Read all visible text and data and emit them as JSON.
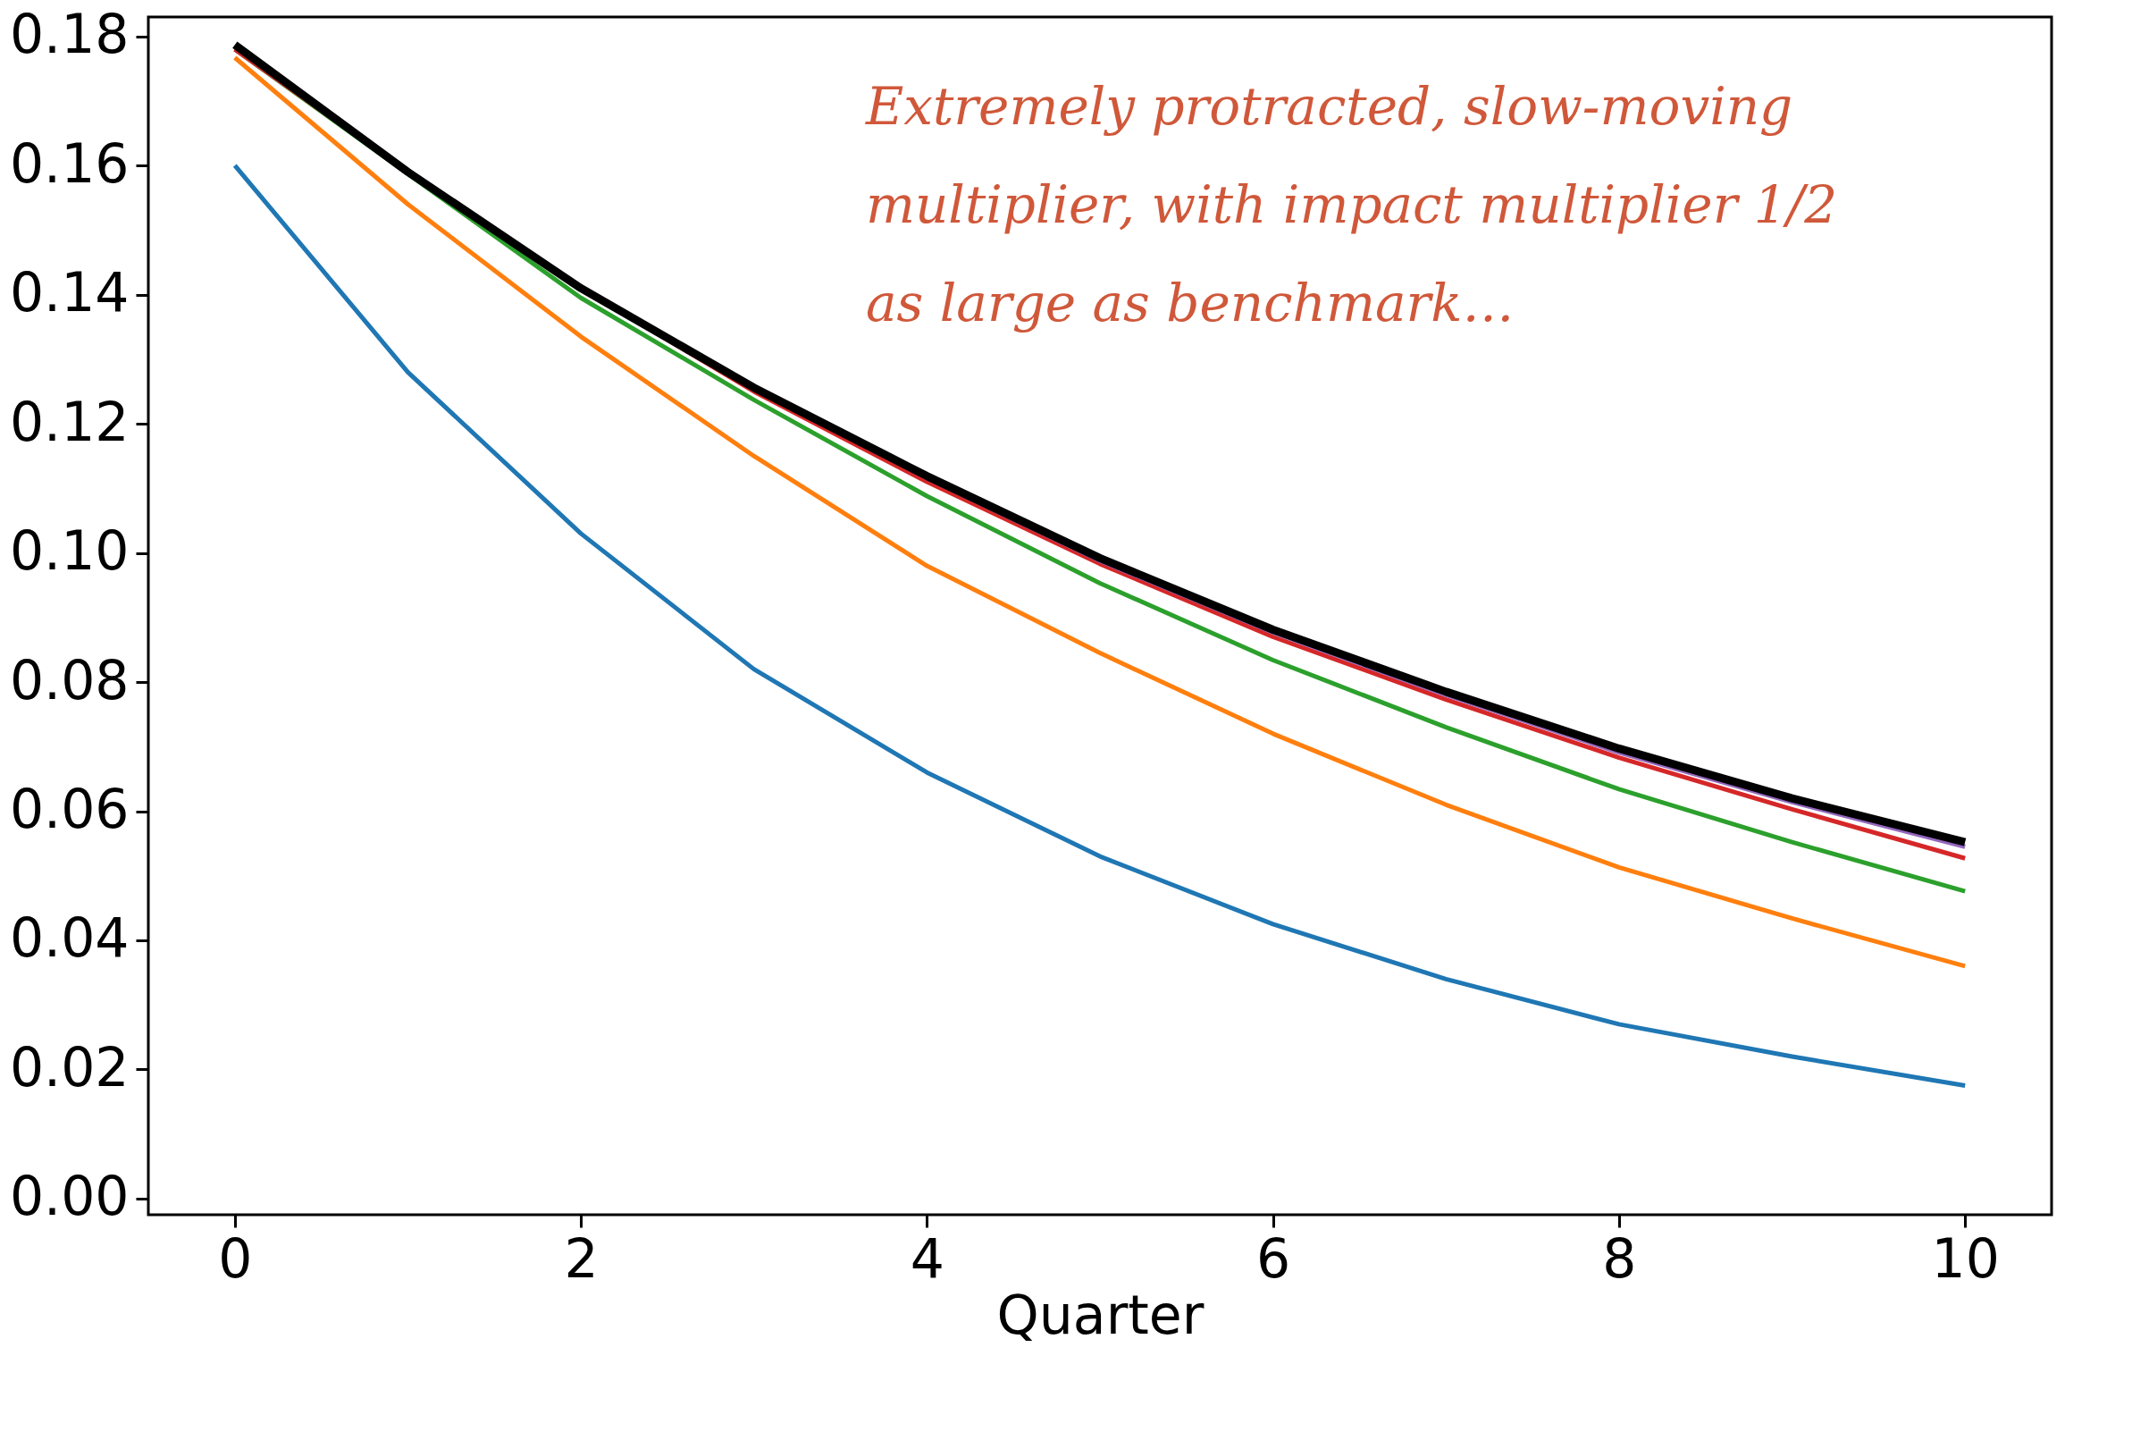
{
  "chart_data": {
    "type": "line",
    "xlabel": "Quarter",
    "x": [
      0,
      1,
      2,
      3,
      4,
      5,
      6,
      7,
      8,
      9,
      10
    ],
    "xlim": [
      -0.5,
      10.5
    ],
    "xticks": [
      0,
      2,
      4,
      6,
      8,
      10
    ],
    "ylim": [
      -0.0025,
      0.183
    ],
    "yticks": [
      {
        "value": 0,
        "label": "0.00"
      },
      {
        "value": 0.02,
        "label": "0.02"
      },
      {
        "value": 0.04,
        "label": "0.04"
      },
      {
        "value": 0.06,
        "label": "0.06"
      },
      {
        "value": 0.08,
        "label": "0.08"
      },
      {
        "value": 0.1,
        "label": "0.10"
      },
      {
        "value": 0.12,
        "label": "0.12"
      },
      {
        "value": 0.14,
        "label": "0.14"
      },
      {
        "value": 0.16,
        "label": "0.16"
      },
      {
        "value": 0.18,
        "label": "0.18"
      }
    ],
    "grid": false,
    "series": [
      {
        "color": "#1f77b4",
        "values": [
          0.16,
          0.128,
          0.103,
          0.082,
          0.066,
          0.053,
          0.0425,
          0.034,
          0.027,
          0.022,
          0.0175
        ]
      },
      {
        "color": "#ff7f0e",
        "values": [
          0.1767,
          0.154,
          0.1335,
          0.115,
          0.098,
          0.0845,
          0.072,
          0.061,
          0.0513,
          0.0434,
          0.036
        ]
      },
      {
        "color": "#2ca02c",
        "values": [
          0.178,
          0.1587,
          0.1395,
          0.1237,
          0.1088,
          0.0953,
          0.0834,
          0.073,
          0.0634,
          0.0552,
          0.0476
        ]
      },
      {
        "color": "#d62728",
        "values": [
          0.178,
          0.159,
          0.141,
          0.125,
          0.111,
          0.0983,
          0.087,
          0.0773,
          0.0683,
          0.0603,
          0.0527
        ]
      },
      {
        "color": "#9467bd",
        "values": [
          0.1785,
          0.159,
          0.141,
          0.1254,
          0.1116,
          0.0988,
          0.0877,
          0.078,
          0.0691,
          0.0614,
          0.0545
        ]
      },
      {
        "color": "#000000",
        "values": [
          0.1787,
          0.159,
          0.141,
          0.1256,
          0.1119,
          0.0992,
          0.0881,
          0.0785,
          0.0697,
          0.062,
          0.0552
        ]
      }
    ],
    "annotations": [
      "Extremely protracted, slow-moving\nmultiplier, with impact multiplier 1/2\nas large as benchmark…"
    ]
  }
}
